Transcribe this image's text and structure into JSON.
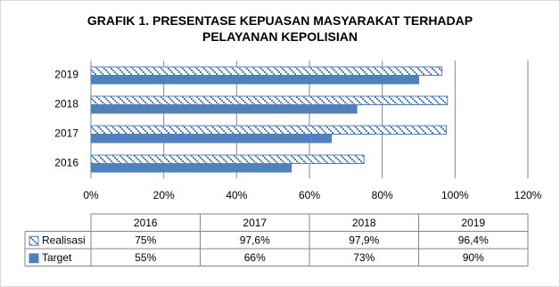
{
  "chart_data": {
    "type": "bar",
    "orientation": "horizontal",
    "title": "GRAFIK 1. PRESENTASE KEPUASAN MASYARAKAT TERHADAP PELAYANAN KEPOLISIAN",
    "categories": [
      "2016",
      "2017",
      "2018",
      "2019"
    ],
    "series": [
      {
        "name": "Realisasi",
        "color": "#4f81bd",
        "pattern": true,
        "values": [
          75,
          97.6,
          97.9,
          96.4
        ],
        "value_labels": [
          "75%",
          "97,6%",
          "97,9%",
          "96,4%"
        ]
      },
      {
        "name": "Target",
        "color": "#4f81bd",
        "pattern": false,
        "values": [
          55,
          66,
          73,
          90
        ],
        "value_labels": [
          "55%",
          "66%",
          "73%",
          "90%"
        ]
      }
    ],
    "xlim": [
      0,
      120
    ],
    "xticks": [
      {
        "value": 0,
        "label": "0%"
      },
      {
        "value": 20,
        "label": "20%"
      },
      {
        "value": 40,
        "label": "40%"
      },
      {
        "value": 60,
        "label": "60%"
      },
      {
        "value": 80,
        "label": "80%"
      },
      {
        "value": 100,
        "label": "100%"
      },
      {
        "value": 120,
        "label": "120%"
      }
    ],
    "grid": true,
    "data_table": true
  }
}
